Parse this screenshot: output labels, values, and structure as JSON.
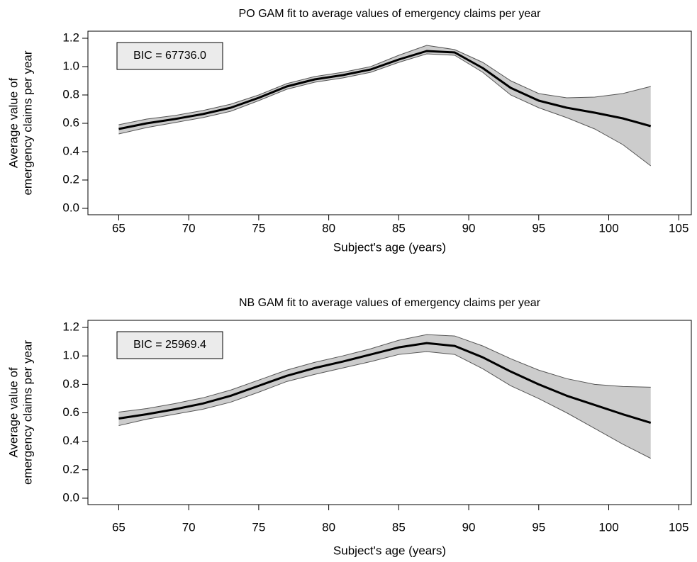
{
  "chart_data": [
    {
      "type": "line",
      "title": "PO GAM fit to average values of emergency claims per year",
      "xlabel": "Subject's age (years)",
      "ylabel": [
        "Average value of",
        "emergency claims per year"
      ],
      "annotation": "BIC = 67736.0",
      "x": [
        65,
        67,
        69,
        71,
        73,
        75,
        77,
        79,
        81,
        83,
        85,
        87,
        89,
        91,
        93,
        95,
        97,
        99,
        101,
        103
      ],
      "series": [
        {
          "color": "#000000",
          "values": [
            0.56,
            0.6,
            0.63,
            0.665,
            0.71,
            0.78,
            0.86,
            0.91,
            0.94,
            0.98,
            1.05,
            1.11,
            1.1,
            0.99,
            0.85,
            0.76,
            0.71,
            0.675,
            0.635,
            0.58
          ]
        }
      ],
      "band": {
        "color": "#cccccc",
        "lower": [
          0.525,
          0.57,
          0.605,
          0.64,
          0.685,
          0.76,
          0.84,
          0.89,
          0.92,
          0.96,
          1.03,
          1.09,
          1.08,
          0.96,
          0.8,
          0.71,
          0.64,
          0.56,
          0.45,
          0.3
        ],
        "upper": [
          0.59,
          0.63,
          0.655,
          0.69,
          0.735,
          0.8,
          0.88,
          0.93,
          0.96,
          1.0,
          1.08,
          1.15,
          1.12,
          1.03,
          0.9,
          0.81,
          0.78,
          0.785,
          0.81,
          0.86
        ]
      },
      "xlim": [
        62.8,
        105.9
      ],
      "xticks": [
        65,
        70,
        75,
        80,
        85,
        90,
        95,
        100,
        105
      ],
      "ylim": [
        -0.045,
        1.25
      ],
      "yticks": [
        {
          "value": 0,
          "label": "0.0"
        },
        0.2,
        0.4,
        0.6,
        0.8,
        {
          "value": 1,
          "label": "1.0"
        },
        1.2
      ]
    },
    {
      "type": "line",
      "title": "NB GAM fit to average values of emergency claims per year",
      "xlabel": "Subject's age (years)",
      "ylabel": [
        "Average value of",
        "emergency claims per year"
      ],
      "annotation": "BIC = 25969.4",
      "x": [
        65,
        67,
        69,
        71,
        73,
        75,
        77,
        79,
        81,
        83,
        85,
        87,
        89,
        91,
        93,
        95,
        97,
        99,
        101,
        103
      ],
      "series": [
        {
          "color": "#000000",
          "values": [
            0.56,
            0.59,
            0.625,
            0.665,
            0.72,
            0.79,
            0.86,
            0.915,
            0.96,
            1.01,
            1.06,
            1.09,
            1.07,
            0.99,
            0.89,
            0.8,
            0.72,
            0.655,
            0.59,
            0.53
          ]
        }
      ],
      "band": {
        "color": "#cccccc",
        "lower": [
          0.51,
          0.555,
          0.59,
          0.625,
          0.675,
          0.745,
          0.82,
          0.87,
          0.915,
          0.96,
          1.01,
          1.03,
          1.01,
          0.91,
          0.79,
          0.7,
          0.6,
          0.49,
          0.38,
          0.28
        ],
        "upper": [
          0.605,
          0.63,
          0.665,
          0.705,
          0.76,
          0.83,
          0.9,
          0.955,
          1.0,
          1.05,
          1.11,
          1.15,
          1.14,
          1.07,
          0.98,
          0.9,
          0.84,
          0.8,
          0.785,
          0.78
        ]
      },
      "xlim": [
        62.8,
        105.9
      ],
      "xticks": [
        65,
        70,
        75,
        80,
        85,
        90,
        95,
        100,
        105
      ],
      "ylim": [
        -0.045,
        1.25
      ],
      "yticks": [
        {
          "value": 0,
          "label": "0.0"
        },
        0.2,
        0.4,
        0.6,
        0.8,
        {
          "value": 1,
          "label": "1.0"
        },
        1.2
      ]
    }
  ]
}
